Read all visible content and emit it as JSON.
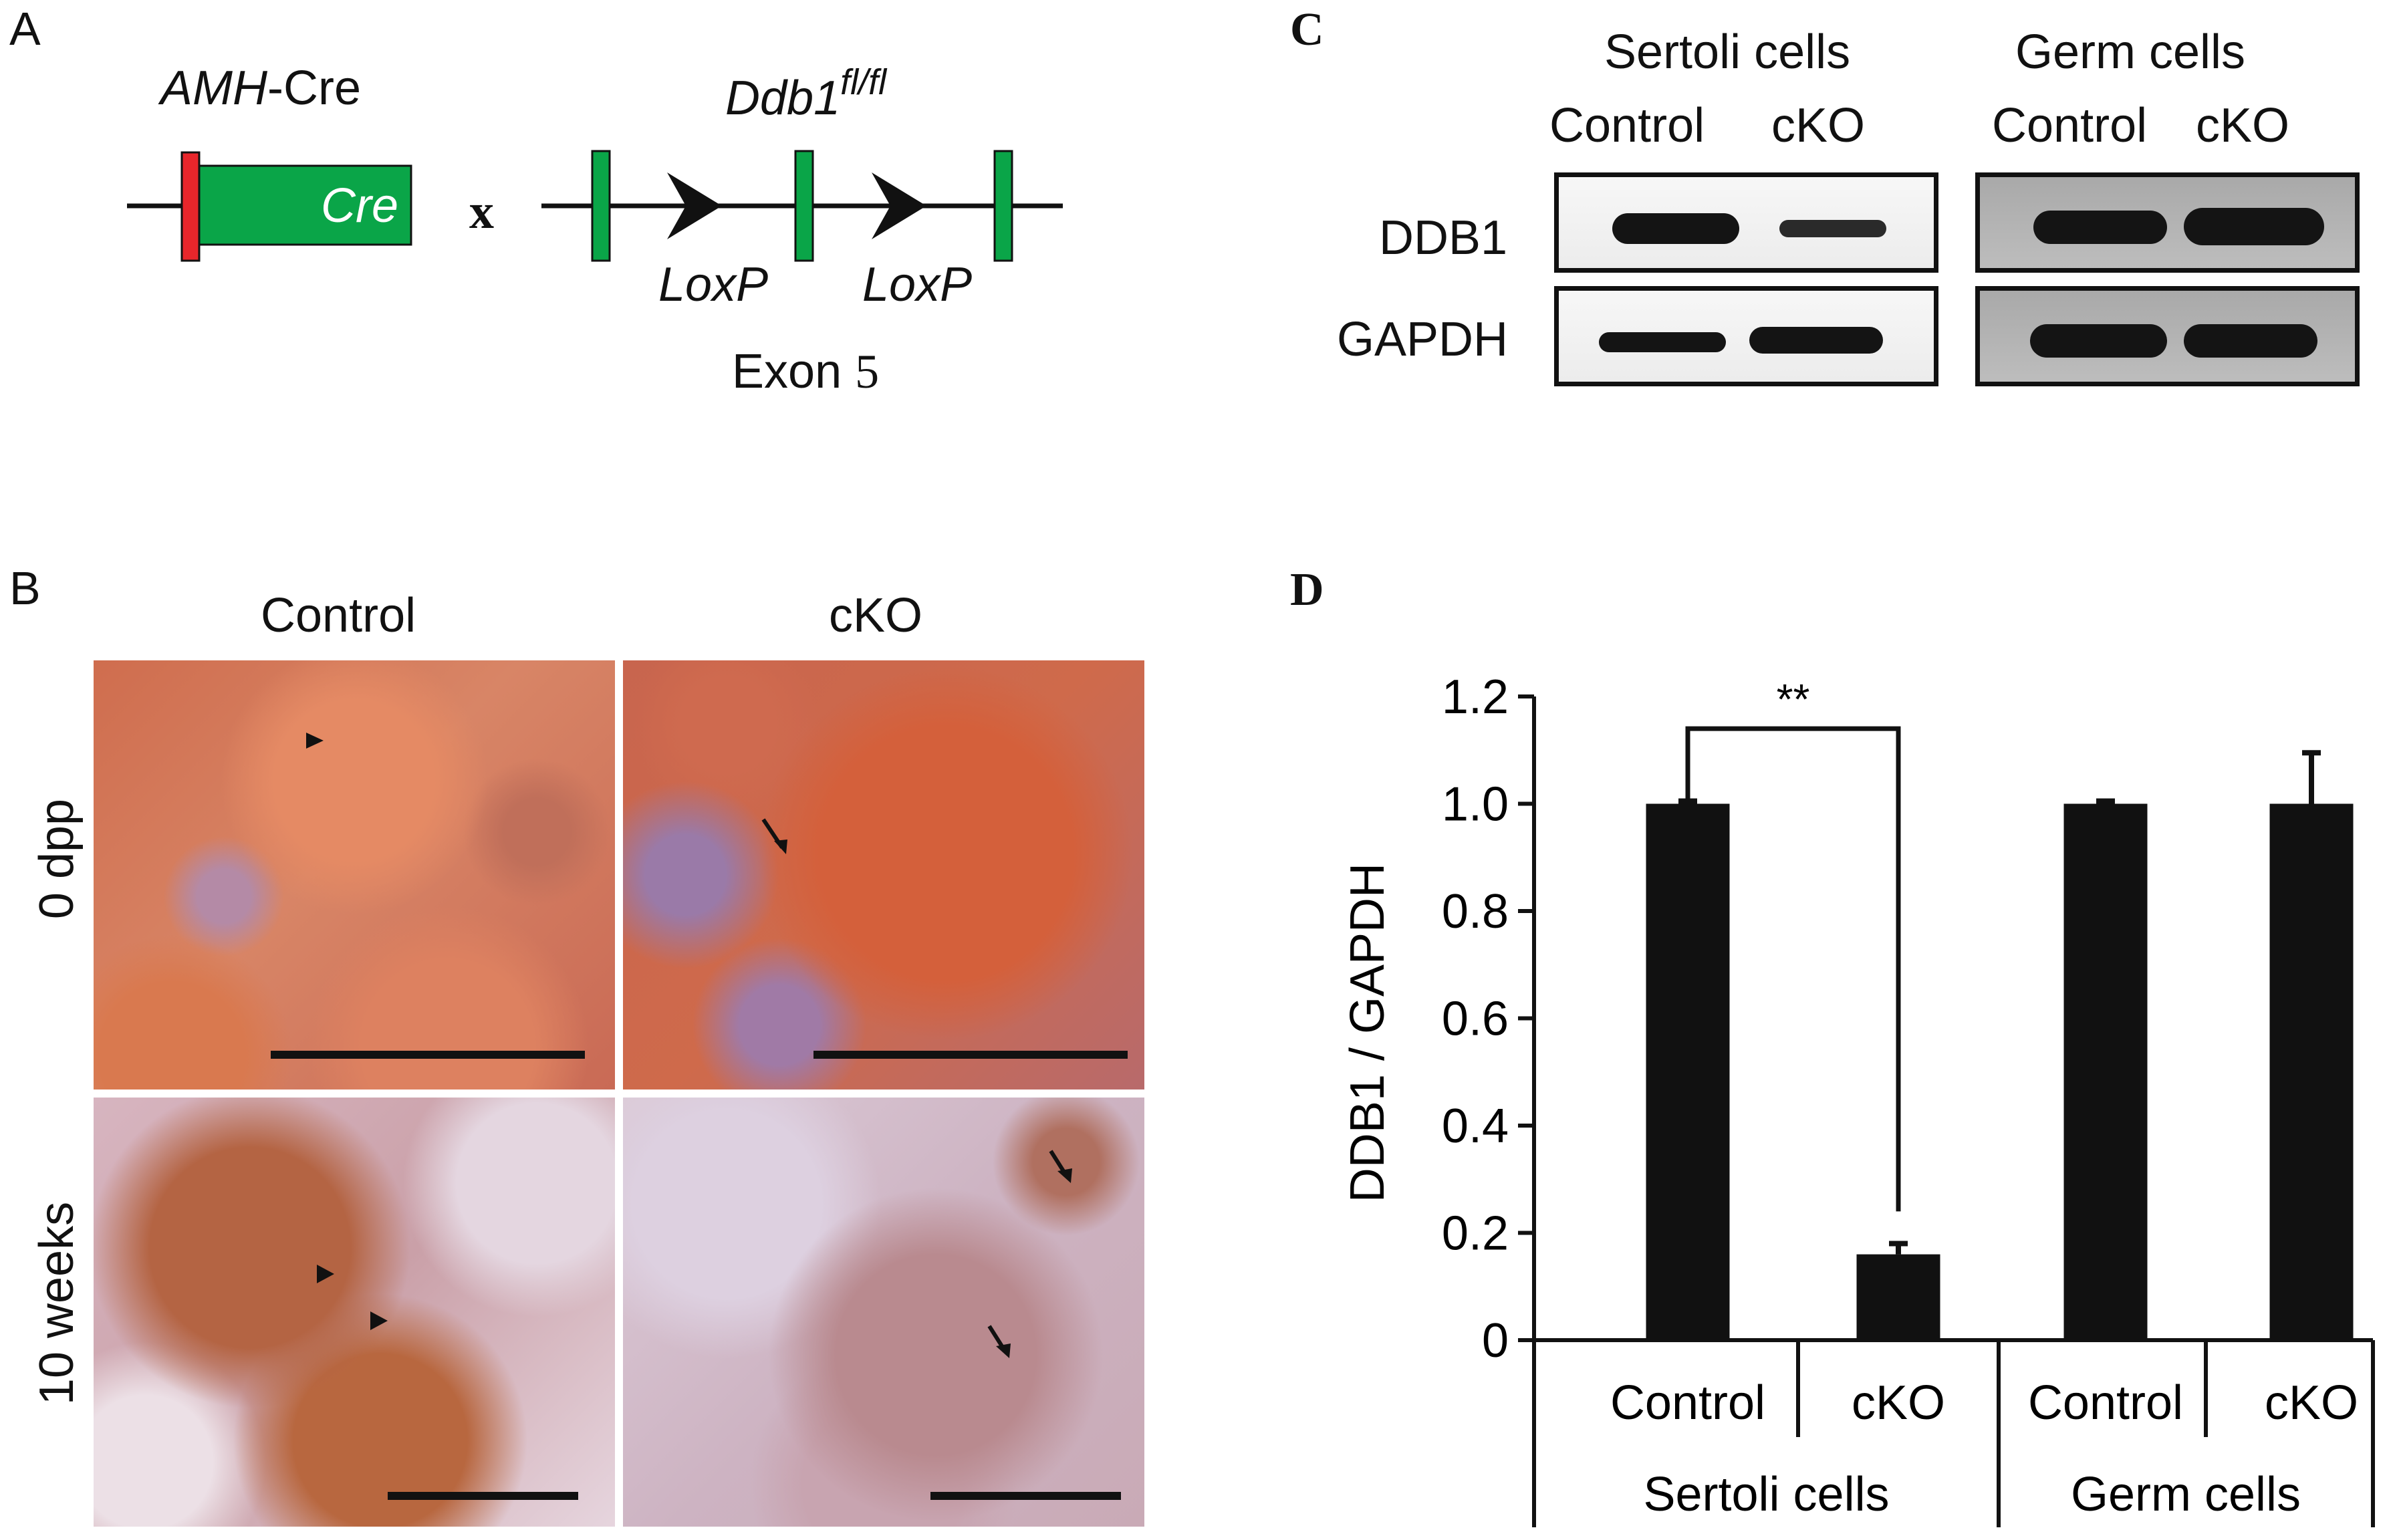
{
  "panel_a": {
    "letter": "A",
    "amh_cre_italic": "AMH",
    "amh_cre_rest": "-Cre",
    "cre_box_label": "Cre",
    "cross": "x",
    "ddb1_base": "Ddb1",
    "ddb1_sup": "fl/fl",
    "loxp_1": "LoxP",
    "loxp_2": "LoxP",
    "exon_word": "Exon",
    "exon_num": "5",
    "colors": {
      "cre_box": "#0aa548",
      "promoter": "#e8262b",
      "exon": "#0aa548"
    }
  },
  "panel_b": {
    "letter": "B",
    "col_control": "Control",
    "col_cko": "cKO",
    "row_0dpp": "0 dpp",
    "row_10weeks": "10 weeks"
  },
  "panel_c": {
    "letter": "C",
    "group_sertoli": "Sertoli cells",
    "group_germ": "Germ cells",
    "sertoli_control": "Control",
    "sertoli_cko": "cKO",
    "germ_control": "Control",
    "germ_cko": "cKO",
    "row_ddb1": "DDB1",
    "row_gapdh": "GAPDH"
  },
  "panel_d": {
    "letter": "D",
    "significance": "**",
    "x_labels": [
      "Control",
      "cKO",
      "Control",
      "cKO"
    ],
    "group_labels": [
      "Sertoli cells",
      "Germ cells"
    ]
  },
  "chart_data": {
    "type": "bar",
    "categories": [
      "Control",
      "cKO",
      "Control",
      "cKO"
    ],
    "groups": [
      "Sertoli cells",
      "Germ cells"
    ],
    "values": [
      1.0,
      0.16,
      1.0,
      1.0
    ],
    "errors": [
      0.005,
      0.02,
      0.005,
      0.095
    ],
    "ylabel": "DDB1 / GAPDH",
    "ylim": [
      0,
      1.2
    ],
    "yticks": [
      "1.2",
      "1.0",
      "0.8",
      "0.6",
      "0.4",
      "0.2",
      "0"
    ],
    "significance": {
      "between": [
        0,
        1
      ],
      "label": "**"
    },
    "colors": {
      "bar": "#111111"
    }
  }
}
